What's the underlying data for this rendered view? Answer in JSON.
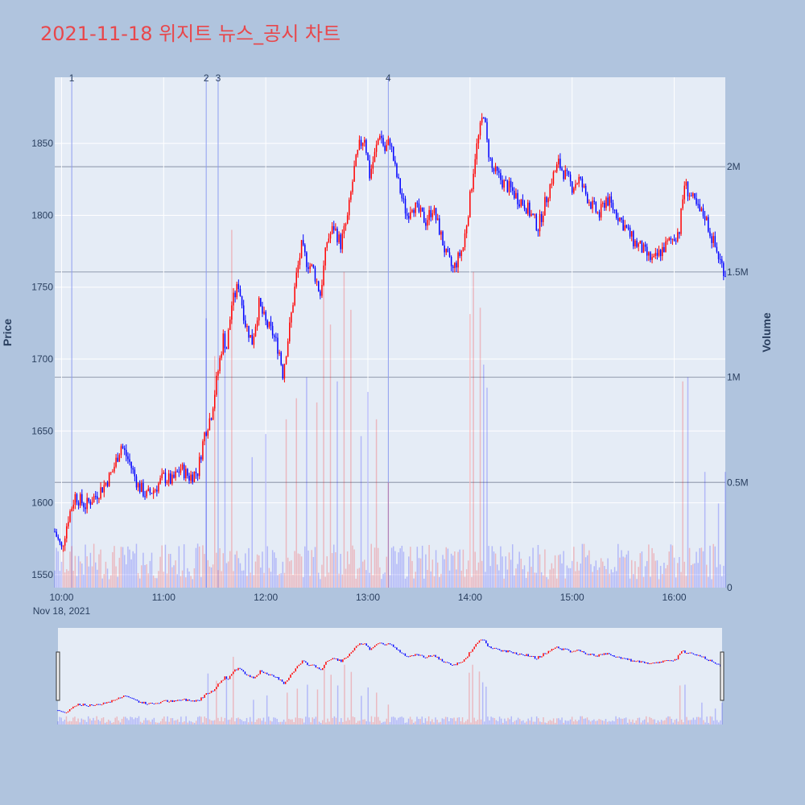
{
  "title": "2021-11-18 위지트 뉴스_공시 차트",
  "colors": {
    "background": "#b0c4de",
    "plot_bg": "#e5ecf6",
    "up": "#ff0000",
    "down": "#0000ff",
    "title": "#e8474b",
    "news_line": "#8e9df0"
  },
  "chart_data": {
    "type": "candlestick",
    "title": "2021-11-18 위지트 뉴스_공시 차트",
    "ylabel": "Price",
    "y2label": "Volume",
    "ylim": [
      1541,
      1896
    ],
    "y2lim": [
      0,
      2425000
    ],
    "y_ticks": [
      "1550",
      "1600",
      "1650",
      "1700",
      "1750",
      "1800",
      "1850"
    ],
    "y2_ticks": [
      "0",
      "0.5M",
      "1M",
      "1.5M",
      "2M"
    ],
    "x_ticks": [
      "10:00",
      "11:00",
      "12:00",
      "13:00",
      "14:00",
      "15:00",
      "16:00"
    ],
    "x_date_label": "Nov 18, 2021",
    "x_range_minutes": [
      596,
      990
    ],
    "news_markers": [
      {
        "label": "1",
        "minute": 606
      },
      {
        "label": "2",
        "minute": 685
      },
      {
        "label": "3",
        "minute": 692
      },
      {
        "label": "4",
        "minute": 792
      }
    ],
    "price_path": [
      [
        596,
        1580
      ],
      [
        600,
        1568
      ],
      [
        604,
        1590
      ],
      [
        608,
        1605
      ],
      [
        614,
        1598
      ],
      [
        620,
        1605
      ],
      [
        625,
        1612
      ],
      [
        630,
        1622
      ],
      [
        635,
        1640
      ],
      [
        640,
        1628
      ],
      [
        645,
        1612
      ],
      [
        650,
        1605
      ],
      [
        655,
        1610
      ],
      [
        660,
        1618
      ],
      [
        665,
        1615
      ],
      [
        670,
        1624
      ],
      [
        675,
        1618
      ],
      [
        680,
        1622
      ],
      [
        684,
        1648
      ],
      [
        688,
        1662
      ],
      [
        692,
        1692
      ],
      [
        695,
        1715
      ],
      [
        697,
        1708
      ],
      [
        700,
        1738
      ],
      [
        704,
        1752
      ],
      [
        708,
        1725
      ],
      [
        712,
        1712
      ],
      [
        716,
        1738
      ],
      [
        720,
        1725
      ],
      [
        724,
        1718
      ],
      [
        728,
        1705
      ],
      [
        730,
        1690
      ],
      [
        734,
        1722
      ],
      [
        738,
        1758
      ],
      [
        741,
        1778
      ],
      [
        744,
        1768
      ],
      [
        748,
        1762
      ],
      [
        752,
        1745
      ],
      [
        756,
        1782
      ],
      [
        760,
        1792
      ],
      [
        764,
        1780
      ],
      [
        768,
        1798
      ],
      [
        772,
        1832
      ],
      [
        775,
        1848
      ],
      [
        778,
        1855
      ],
      [
        781,
        1828
      ],
      [
        784,
        1842
      ],
      [
        787,
        1858
      ],
      [
        790,
        1845
      ],
      [
        793,
        1852
      ],
      [
        796,
        1832
      ],
      [
        800,
        1812
      ],
      [
        803,
        1800
      ],
      [
        806,
        1808
      ],
      [
        810,
        1802
      ],
      [
        814,
        1796
      ],
      [
        818,
        1805
      ],
      [
        822,
        1790
      ],
      [
        826,
        1772
      ],
      [
        830,
        1762
      ],
      [
        833,
        1770
      ],
      [
        836,
        1778
      ],
      [
        840,
        1812
      ],
      [
        843,
        1842
      ],
      [
        846,
        1860
      ],
      [
        848,
        1872
      ],
      [
        850,
        1850
      ],
      [
        853,
        1832
      ],
      [
        856,
        1828
      ],
      [
        860,
        1822
      ],
      [
        864,
        1818
      ],
      [
        868,
        1812
      ],
      [
        872,
        1808
      ],
      [
        876,
        1800
      ],
      [
        880,
        1792
      ],
      [
        884,
        1808
      ],
      [
        888,
        1825
      ],
      [
        892,
        1836
      ],
      [
        896,
        1828
      ],
      [
        900,
        1820
      ],
      [
        904,
        1825
      ],
      [
        908,
        1815
      ],
      [
        912,
        1806
      ],
      [
        916,
        1800
      ],
      [
        920,
        1812
      ],
      [
        924,
        1805
      ],
      [
        928,
        1798
      ],
      [
        932,
        1790
      ],
      [
        936,
        1782
      ],
      [
        940,
        1778
      ],
      [
        944,
        1772
      ],
      [
        948,
        1768
      ],
      [
        952,
        1775
      ],
      [
        956,
        1780
      ],
      [
        960,
        1785
      ],
      [
        963,
        1790
      ],
      [
        966,
        1822
      ],
      [
        969,
        1815
      ],
      [
        972,
        1808
      ],
      [
        975,
        1802
      ],
      [
        978,
        1800
      ],
      [
        981,
        1788
      ],
      [
        984,
        1778
      ],
      [
        987,
        1768
      ],
      [
        990,
        1760
      ]
    ],
    "volume_peaks": [
      [
        685,
        1280000
      ],
      [
        690,
        1100000
      ],
      [
        696,
        1200000
      ],
      [
        700,
        1700000
      ],
      [
        712,
        620000
      ],
      [
        720,
        730000
      ],
      [
        732,
        800000
      ],
      [
        738,
        900000
      ],
      [
        744,
        1000000
      ],
      [
        750,
        880000
      ],
      [
        754,
        1450000
      ],
      [
        758,
        1250000
      ],
      [
        762,
        980000
      ],
      [
        766,
        1500000
      ],
      [
        770,
        1320000
      ],
      [
        776,
        720000
      ],
      [
        780,
        930000
      ],
      [
        785,
        800000
      ],
      [
        792,
        500000
      ],
      [
        840,
        1300000
      ],
      [
        842,
        1500000
      ],
      [
        846,
        1330000
      ],
      [
        848,
        1060000
      ],
      [
        850,
        950000
      ],
      [
        965,
        980000
      ],
      [
        968,
        1000000
      ],
      [
        978,
        550000
      ],
      [
        986,
        400000
      ],
      [
        990,
        550000
      ]
    ]
  }
}
